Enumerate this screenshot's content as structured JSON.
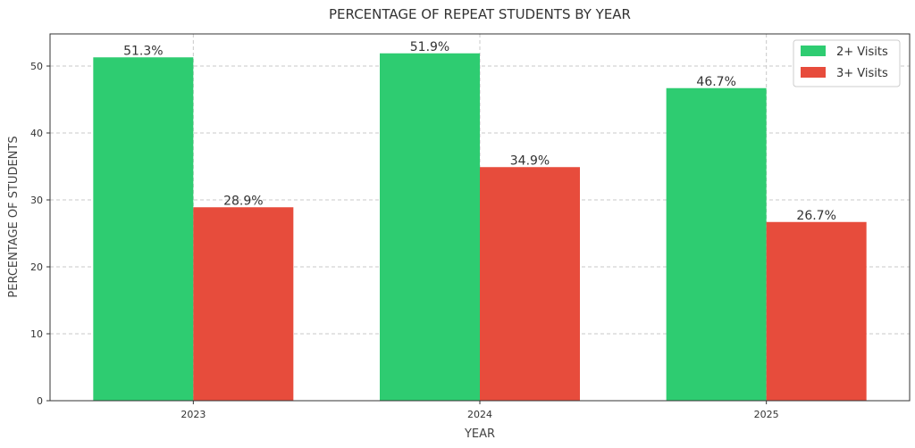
{
  "chart_data": {
    "type": "bar",
    "title": "PERCENTAGE OF REPEAT STUDENTS BY YEAR",
    "xlabel": "YEAR",
    "ylabel": "PERCENTAGE OF STUDENTS",
    "categories": [
      "2023",
      "2024",
      "2025"
    ],
    "series": [
      {
        "name": "2+ Visits",
        "color": "#2ecc71",
        "values": [
          51.3,
          51.9,
          46.7
        ],
        "labels": [
          "51.3%",
          "51.9%",
          "46.7%"
        ]
      },
      {
        "name": "3+ Visits",
        "color": "#e74c3c",
        "values": [
          28.9,
          34.9,
          26.7
        ],
        "labels": [
          "28.9%",
          "34.9%",
          "26.7%"
        ]
      }
    ],
    "ylim": [
      0,
      54.8
    ],
    "yticks": [
      0,
      10,
      20,
      30,
      40,
      50
    ],
    "grid": true,
    "legend_position": "top-right"
  }
}
